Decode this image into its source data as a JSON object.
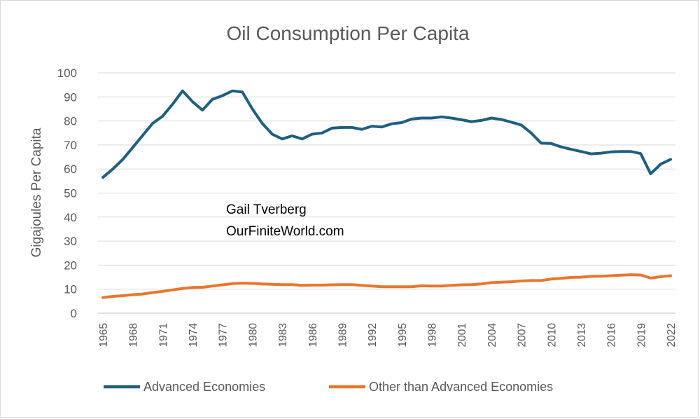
{
  "chart_data": {
    "type": "line",
    "title": "Oil Consumption Per Capita",
    "xlabel": "",
    "ylabel": "Gigajoules Per Capita",
    "ylim": [
      0,
      100
    ],
    "yticks": [
      "0",
      "10",
      "20",
      "30",
      "40",
      "50",
      "60",
      "70",
      "80",
      "90",
      "100"
    ],
    "xtick_labels": [
      "1965",
      "1968",
      "1971",
      "1974",
      "1977",
      "1980",
      "1983",
      "1986",
      "1989",
      "1992",
      "1995",
      "1998",
      "2001",
      "2004",
      "2007",
      "2010",
      "2013",
      "2016",
      "2019",
      "2022"
    ],
    "x": [
      1965,
      1966,
      1967,
      1968,
      1969,
      1970,
      1971,
      1972,
      1973,
      1974,
      1975,
      1976,
      1977,
      1978,
      1979,
      1980,
      1981,
      1982,
      1983,
      1984,
      1985,
      1986,
      1987,
      1988,
      1989,
      1990,
      1991,
      1992,
      1993,
      1994,
      1995,
      1996,
      1997,
      1998,
      1999,
      2000,
      2001,
      2002,
      2003,
      2004,
      2005,
      2006,
      2007,
      2008,
      2009,
      2010,
      2011,
      2012,
      2013,
      2014,
      2015,
      2016,
      2017,
      2018,
      2019,
      2020,
      2021,
      2022
    ],
    "series": [
      {
        "name": "Advanced Economies",
        "color": "#1f5f7f",
        "values": [
          56.5,
          60,
          64,
          69,
          74,
          79,
          82,
          87,
          92.5,
          88,
          84.5,
          89,
          90.5,
          92.5,
          92,
          85,
          79,
          74.5,
          72.5,
          73.8,
          72.5,
          74.5,
          75,
          77,
          77.3,
          77.3,
          76.5,
          77.8,
          77.5,
          78.8,
          79.3,
          80.8,
          81.2,
          81.2,
          81.7,
          81.2,
          80.5,
          79.7,
          80.2,
          81.2,
          80.6,
          79.5,
          78.3,
          75,
          70.8,
          70.6,
          69.2,
          68.2,
          67.3,
          66.3,
          66.6,
          67.1,
          67.3,
          67.3,
          66.4,
          58,
          62,
          64
        ]
      },
      {
        "name": "Other than Advanced Economies",
        "color": "#e8772e",
        "values": [
          6.5,
          7,
          7.3,
          7.7,
          8,
          8.6,
          9.1,
          9.7,
          10.3,
          10.7,
          10.8,
          11.3,
          11.8,
          12.3,
          12.5,
          12.4,
          12.2,
          12,
          11.9,
          11.9,
          11.6,
          11.7,
          11.7,
          11.8,
          11.9,
          11.9,
          11.6,
          11.3,
          11,
          11,
          11,
          11,
          11.4,
          11.3,
          11.3,
          11.6,
          11.8,
          11.9,
          12.2,
          12.7,
          12.9,
          13.1,
          13.4,
          13.6,
          13.6,
          14.2,
          14.5,
          14.9,
          15,
          15.3,
          15.4,
          15.6,
          15.8,
          16,
          15.9,
          14.6,
          15.2,
          15.6
        ]
      }
    ],
    "annotations": [
      "Gail Tverberg",
      "OurFiniteWorld.com"
    ],
    "grid": true,
    "legend_position": "bottom"
  }
}
